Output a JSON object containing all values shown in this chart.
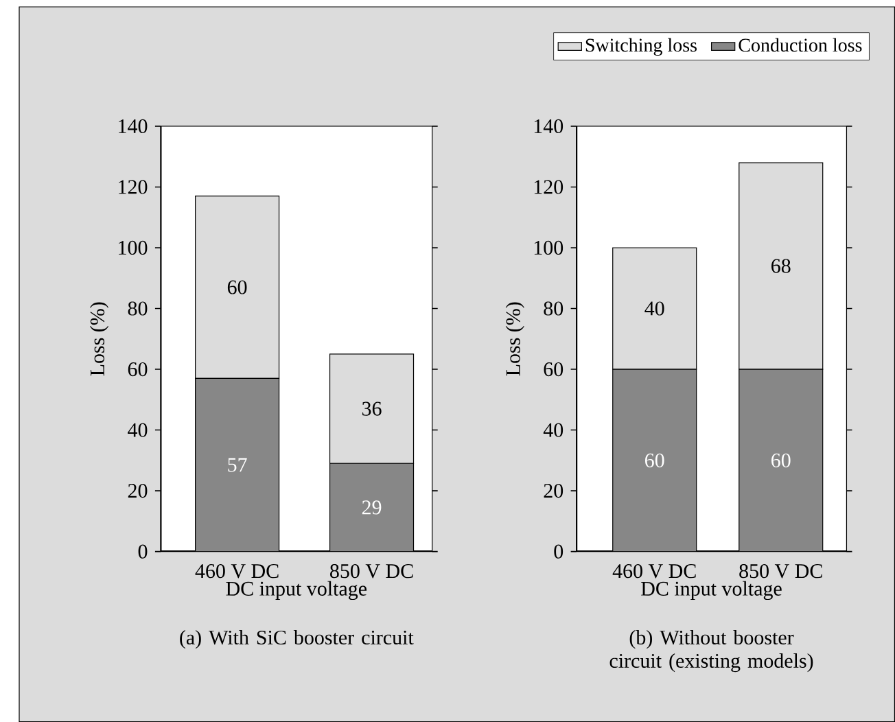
{
  "chart_data": [
    {
      "type": "bar",
      "title": "(a) With SiC booster circuit",
      "xlabel": "DC input voltage",
      "ylabel": "Loss (%)",
      "categories": [
        "460 V DC",
        "850 V DC"
      ],
      "stacked": true,
      "data_labels": true,
      "ylim": [
        0,
        140
      ],
      "yticks": [
        0,
        20,
        40,
        60,
        80,
        100,
        120,
        140
      ],
      "series": [
        {
          "color": "#878787",
          "values": [
            57,
            29
          ]
        },
        {
          "color": "#dcdcdc",
          "values": [
            60,
            36
          ]
        }
      ]
    },
    {
      "type": "bar",
      "title": "(b) Without booster circuit (existing models)",
      "xlabel": "DC input voltage",
      "ylabel": "Loss (%)",
      "categories": [
        "460 V DC",
        "850 V DC"
      ],
      "stacked": true,
      "data_labels": true,
      "legend": "top",
      "ylim": [
        0,
        140
      ],
      "yticks": [
        0,
        20,
        40,
        60,
        80,
        100,
        120,
        140
      ],
      "series": [
        {
          "name": "Conduction loss",
          "color": "#878787",
          "values": [
            60,
            60
          ]
        },
        {
          "name": "Switching loss",
          "color": "#dcdcdc",
          "values": [
            40,
            68
          ]
        }
      ]
    }
  ]
}
